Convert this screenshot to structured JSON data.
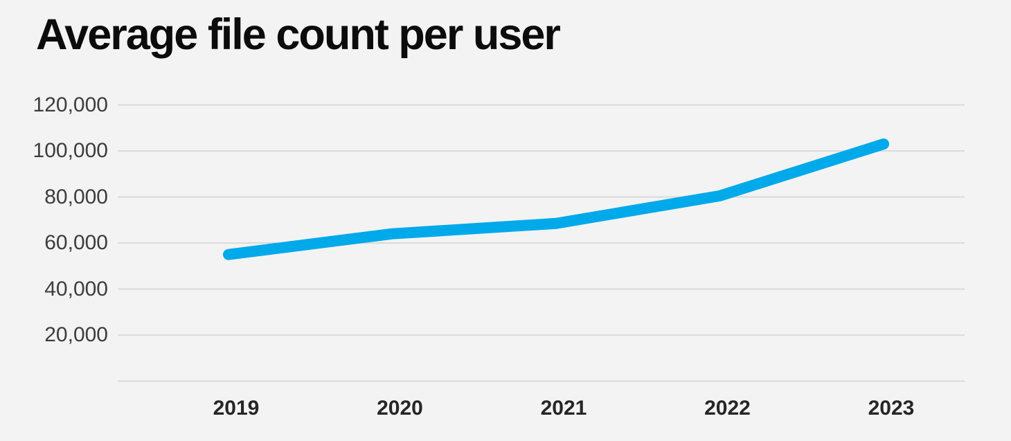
{
  "page": {
    "background_color": "#f3f3f3"
  },
  "chart_data": {
    "type": "line",
    "title": "Average file count per user",
    "categories": [
      "2019",
      "2020",
      "2021",
      "2022",
      "2023"
    ],
    "series": [
      {
        "name": "Average file count per user",
        "values": [
          55000,
          64000,
          68500,
          80500,
          103000
        ]
      }
    ],
    "y_ticks": [
      120000,
      100000,
      80000,
      60000,
      40000,
      20000
    ],
    "y_tick_labels": [
      "120,000",
      "100,000",
      "80,000",
      "60,000",
      "40,000",
      "20,000"
    ],
    "ylim": [
      0,
      125000
    ],
    "xlabel": "",
    "ylabel": "",
    "grid": true,
    "baseline_gridline_unlabeled": true,
    "legend_position": "none",
    "line_color": "#00a9e9",
    "gridline_color": "#dadada",
    "title_color": "#0c0c0c",
    "y_label_color": "#3d3d3d",
    "x_label_color": "#262626"
  }
}
